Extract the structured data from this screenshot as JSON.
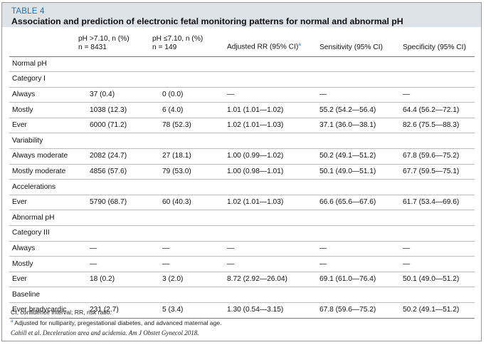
{
  "table_label": "TABLE 4",
  "table_title": "Association and prediction of electronic fetal monitoring patterns for normal and abnormal pH",
  "headers": {
    "col1_line1": "pH >7.10, n (%)",
    "col1_line2": "n = 8431",
    "col2_line1": "pH ≤7.10, n (%)",
    "col2_line2": "n = 149",
    "col3": "Adjusted RR (95% CI)",
    "col3_note": "a",
    "col4": "Sensitivity (95% CI)",
    "col5": "Specificity (95% CI)"
  },
  "rows": [
    {
      "cells": [
        "Normal pH"
      ]
    },
    {
      "cells": [
        "Category I"
      ]
    },
    {
      "cells": [
        "Always",
        "37 (0.4)",
        "0 (0.0)",
        "—",
        "—",
        "—"
      ]
    },
    {
      "cells": [
        "Mostly",
        "1038 (12.3)",
        "6 (4.0)",
        "1.01 (1.01—1.02)",
        "55.2 (54.2—56.4)",
        "64.4 (56.2—72.1)"
      ]
    },
    {
      "cells": [
        "Ever",
        "6000 (71.2)",
        "78 (52.3)",
        "1.02 (1.01—1.03)",
        "37.1 (36.0—38.1)",
        "82.6 (75.5—88.3)"
      ]
    },
    {
      "cells": [
        "Variability"
      ]
    },
    {
      "cells": [
        "Always moderate",
        "2082 (24.7)",
        "27 (18.1)",
        "1.00 (0.99—1.02)",
        "50.2 (49.1—51.2)",
        "67.8 (59.6—75.2)"
      ]
    },
    {
      "cells": [
        "Mostly moderate",
        "4856 (57.6)",
        "79 (53.0)",
        "1.00 (0.98—1.01)",
        "50.1 (49.0—51.1)",
        "67.7 (59.5—75.1)"
      ]
    },
    {
      "cells": [
        "Accelerations"
      ]
    },
    {
      "cells": [
        "Ever",
        "5790 (68.7)",
        "60 (40.3)",
        "1.02 (1.01—1.03)",
        "66.6 (65.6—67.6)",
        "61.7 (53.4—69.6)"
      ]
    },
    {
      "cells": [
        "Abnormal pH"
      ]
    },
    {
      "cells": [
        "Category III"
      ]
    },
    {
      "cells": [
        "Always",
        "—",
        "—",
        "—",
        "—",
        "—"
      ]
    },
    {
      "cells": [
        "Mostly",
        "—",
        "—",
        "—",
        "—",
        "—"
      ]
    },
    {
      "cells": [
        "Ever",
        "18 (0.2)",
        "3 (2.0)",
        "8.72 (2.92—26.04)",
        "69.1 (61.0—76.4)",
        "50.1 (49.0—51.2)"
      ]
    },
    {
      "cells": [
        "Baseline"
      ]
    },
    {
      "cells": [
        "Ever bradycardic",
        "231 (2.7)",
        "5 (3.4)",
        "1.30 (0.54—3.15)",
        "67.8 (59.6—75.2)",
        "50.2 (49.1—51.2)"
      ]
    }
  ],
  "footnotes": {
    "abbrev": "CI, confidence interval; RR, risk ratio.",
    "note_marker": "a",
    "note_a": "Adjusted for nulliparity, pregestational diabetes, and advanced maternal age.",
    "citation": "Cahill et al. Deceleration area and acidemia. Am J Obstet Gynecol 2018."
  },
  "colors": {
    "title_background": "#dde3e6",
    "label_blue": "#1f74b4"
  }
}
